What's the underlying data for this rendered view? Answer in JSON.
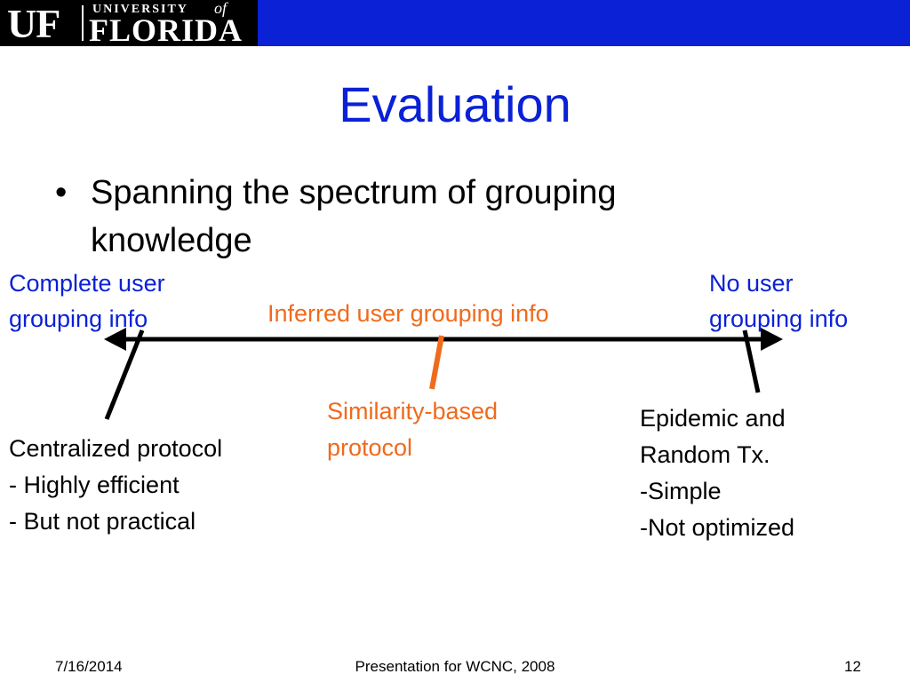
{
  "logo": {
    "uf": "UF",
    "university": "UNIVERSITY",
    "of": "of",
    "florida": "FLORIDA"
  },
  "slide": {
    "title": "Evaluation",
    "bullet_symbol": "•",
    "bullet_line1": "Spanning the spectrum of grouping",
    "bullet_line2": "knowledge"
  },
  "spectrum": {
    "left_label_line1": "Complete user",
    "left_label_line2": "grouping info",
    "middle_label": "Inferred user grouping info",
    "right_label_line1": "No user",
    "right_label_line2": "grouping info"
  },
  "protocols": {
    "centralized": {
      "line1": "Centralized protocol",
      "line2": "- Highly efficient",
      "line3": "- But not practical"
    },
    "similarity": {
      "line1": "Similarity-based",
      "line2": "protocol"
    },
    "epidemic": {
      "line1": "Epidemic and",
      "line2": "Random Tx.",
      "line3": "-Simple",
      "line4": "-Not optimized"
    }
  },
  "footer": {
    "date": "7/16/2014",
    "presentation": "Presentation for WCNC, 2008",
    "page": "12"
  },
  "colors": {
    "brand_blue": "#0a21d6",
    "accent_orange": "#f06a1c",
    "text": "#000000"
  }
}
